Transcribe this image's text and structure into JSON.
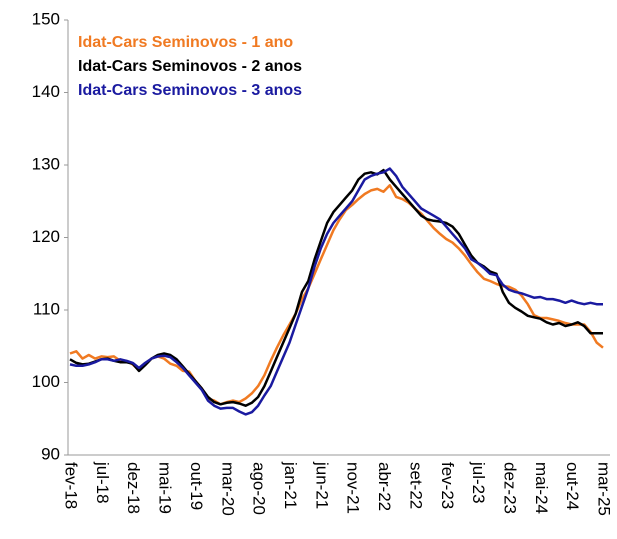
{
  "chart_data": {
    "type": "line",
    "categories": [
      "fev-18",
      null,
      null,
      null,
      null,
      "jul-18",
      null,
      null,
      null,
      null,
      "dez-18",
      null,
      null,
      null,
      null,
      "mai-19",
      null,
      null,
      null,
      null,
      "out-19",
      null,
      null,
      null,
      null,
      "mar-20",
      null,
      null,
      null,
      null,
      "ago-20",
      null,
      null,
      null,
      null,
      "jan-21",
      null,
      null,
      null,
      null,
      "jun-21",
      null,
      null,
      null,
      null,
      "nov-21",
      null,
      null,
      null,
      null,
      "abr-22",
      null,
      null,
      null,
      null,
      "set-22",
      null,
      null,
      null,
      null,
      "fev-23",
      null,
      null,
      null,
      null,
      "jul-23",
      null,
      null,
      null,
      null,
      "dez-23",
      null,
      null,
      null,
      null,
      "mai-24",
      null,
      null,
      null,
      null,
      "out-24",
      null,
      null,
      null,
      null,
      "mar-25"
    ],
    "series": [
      {
        "name": "Idat-Cars Seminovos - 1 ano",
        "color": "#f07a22",
        "values": [
          104,
          104.3,
          103.3,
          103.8,
          103.3,
          103.6,
          103.5,
          103.6,
          103,
          103,
          102.5,
          101.7,
          102.5,
          103.3,
          103.6,
          103.3,
          102.6,
          102.3,
          101.6,
          101.5,
          100.2,
          99.2,
          97.8,
          97.5,
          97,
          97.3,
          97.5,
          97.3,
          97.8,
          98.5,
          99.5,
          101,
          103,
          104.8,
          106.5,
          108,
          109.5,
          111.5,
          113,
          115,
          117,
          119,
          121,
          122.5,
          123.8,
          124.5,
          125.3,
          126,
          126.5,
          126.7,
          126.3,
          127.2,
          125.6,
          125.3,
          124.8,
          124,
          123.3,
          122.3,
          121.3,
          120.5,
          119.8,
          119.3,
          118.5,
          117.5,
          116.3,
          115.2,
          114.3,
          114,
          113.6,
          113.3,
          113.2,
          112.8,
          112,
          110.8,
          109.3,
          108.9,
          108.9,
          108.7,
          108.5,
          108.2,
          108,
          108,
          108,
          107,
          105.5,
          104.8
        ]
      },
      {
        "name": "Idat-Cars Seminovos - 2 anos",
        "color": "#000000",
        "values": [
          103.2,
          102.7,
          102.5,
          102.6,
          102.9,
          103.2,
          103.3,
          103,
          102.8,
          102.8,
          102.6,
          101.6,
          102.4,
          103.3,
          103.8,
          104,
          103.8,
          103.2,
          102.2,
          101.2,
          100.2,
          99.2,
          98,
          97.3,
          97,
          97.2,
          97.3,
          97.1,
          96.8,
          97.2,
          98,
          99.5,
          101.5,
          103.5,
          105.5,
          107.5,
          109.5,
          112.5,
          114,
          117,
          119.5,
          122,
          123.5,
          124.5,
          125.5,
          126.5,
          128,
          128.8,
          129,
          128.7,
          129.3,
          128,
          127,
          126,
          125,
          124,
          123,
          122.5,
          122.3,
          122.2,
          122,
          121.5,
          120.5,
          119,
          117.5,
          116.5,
          116,
          115.3,
          115,
          112.5,
          111,
          110.3,
          109.8,
          109.2,
          109,
          108.8,
          108.3,
          108,
          108.2,
          107.8,
          108,
          108.3,
          107.8,
          106.8,
          106.8,
          106.8
        ]
      },
      {
        "name": "Idat-Cars Seminovos - 3 anos",
        "color": "#1a1aa0",
        "values": [
          102.5,
          102.3,
          102.3,
          102.5,
          102.8,
          103.2,
          103.2,
          103,
          103.2,
          103,
          102.7,
          102,
          102.7,
          103.3,
          103.6,
          103.7,
          103.5,
          102.8,
          102,
          101,
          100,
          99,
          97.5,
          96.8,
          96.4,
          96.5,
          96.5,
          96,
          95.6,
          95.9,
          96.8,
          98.2,
          99.5,
          101.5,
          103.5,
          105.5,
          108,
          110.5,
          113,
          116,
          118.5,
          120.5,
          122,
          123,
          124,
          125,
          126.5,
          128,
          128.5,
          128.8,
          129,
          129.5,
          128.5,
          127,
          126,
          125,
          124,
          123.5,
          123,
          122.5,
          121.5,
          120.5,
          119.5,
          118.5,
          117,
          116.5,
          115.8,
          115,
          114.8,
          113.5,
          112.8,
          112.5,
          112.3,
          112,
          111.7,
          111.8,
          111.5,
          111.5,
          111.3,
          111,
          111.3,
          111,
          110.8,
          111,
          110.8,
          110.8
        ]
      }
    ],
    "ylim": [
      90,
      150
    ],
    "yticks": [
      90,
      100,
      110,
      120,
      130,
      140,
      150
    ]
  }
}
